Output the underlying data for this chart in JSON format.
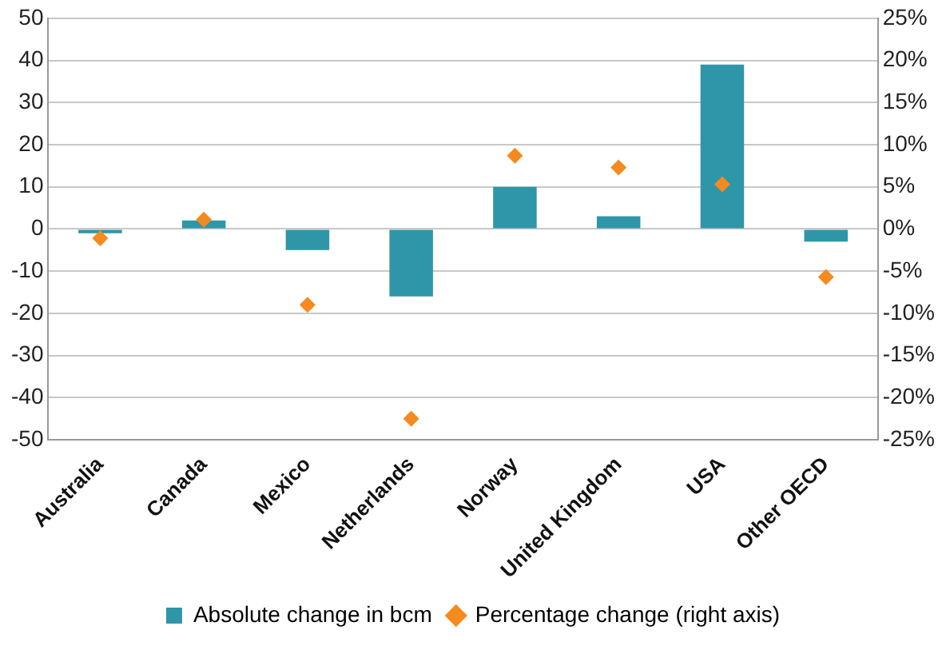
{
  "chart_data": {
    "type": "bar",
    "categories": [
      "Australia",
      "Canada",
      "Mexico",
      "Netherlands",
      "Norway",
      "United Kingdom",
      "USA",
      "Other OECD"
    ],
    "series": [
      {
        "name": "Absolute change in bcm",
        "color": "#2e96a8",
        "values": [
          -1,
          2,
          -5,
          -16,
          10,
          3,
          39,
          -3
        ]
      },
      {
        "name": "Percentage change (right axis)",
        "type": "scatter",
        "axis": "y2",
        "color": "#f58a1f",
        "marker": "diamond",
        "x": [
          "Australia",
          "Canada",
          "Mexico",
          "Netherlands",
          "Norway",
          "United Kingdom",
          "USA",
          "Other OECD"
        ],
        "values": [
          -1.1,
          1.1,
          -9,
          -22.5,
          8.7,
          7.3,
          5.3,
          -5.7
        ]
      }
    ],
    "ylim": [
      -50,
      50
    ],
    "yticks": [
      -50,
      -40,
      -30,
      -20,
      -10,
      0,
      10,
      20,
      30,
      40,
      50
    ],
    "y2lim": [
      -25,
      25
    ],
    "y2ticks": [
      {
        "value": -25,
        "label": "-25%"
      },
      {
        "value": -20,
        "label": "-20%"
      },
      {
        "value": -15,
        "label": "-15%"
      },
      {
        "value": -10,
        "label": "-10%"
      },
      {
        "value": -5,
        "label": "-5%"
      },
      {
        "value": 0,
        "label": "0%"
      },
      {
        "value": 5,
        "label": "5%"
      },
      {
        "value": 10,
        "label": "10%"
      },
      {
        "value": 15,
        "label": "15%"
      },
      {
        "value": 20,
        "label": "20%"
      },
      {
        "value": 25,
        "label": "25%"
      }
    ],
    "grid": "y",
    "legend": "bottom"
  }
}
